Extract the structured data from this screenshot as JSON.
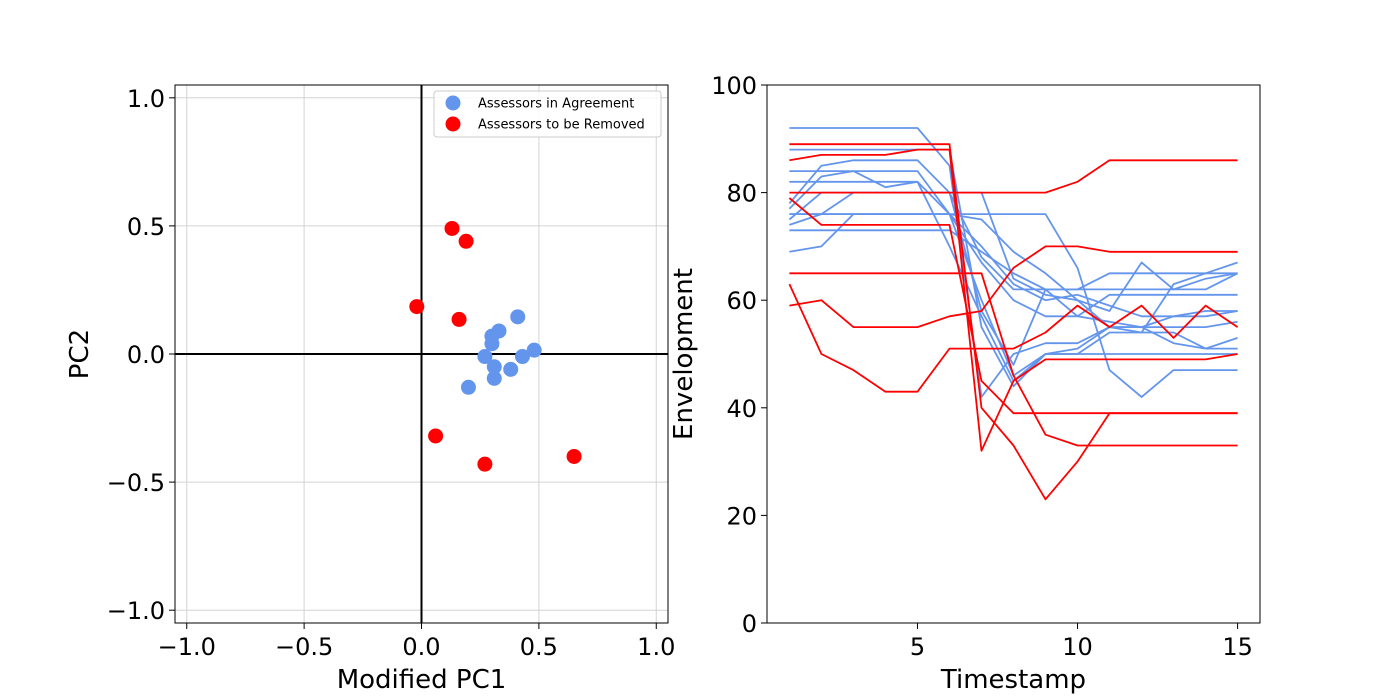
{
  "chart_data": [
    {
      "type": "scatter",
      "xlabel": "Modified PC1",
      "ylabel": "PC2",
      "xlim": [
        -1.05,
        1.05
      ],
      "ylim": [
        -1.05,
        1.05
      ],
      "xticks": [
        -1.0,
        -0.5,
        0.0,
        0.5,
        1.0
      ],
      "yticks": [
        -1.0,
        -0.5,
        0.0,
        0.5,
        1.0
      ],
      "xtick_labels": [
        "−1.0",
        "−0.5",
        "0.0",
        "0.5",
        "1.0"
      ],
      "ytick_labels": [
        "−1.0",
        "−0.5",
        "0.0",
        "0.5",
        "1.0"
      ],
      "grid": true,
      "legend_position": "top-right",
      "series": [
        {
          "name": "Assessors in Agreement",
          "color": "#6495ed",
          "points": [
            [
              0.41,
              0.145
            ],
            [
              0.33,
              0.09
            ],
            [
              0.3,
              0.07
            ],
            [
              0.3,
              0.04
            ],
            [
              0.27,
              -0.01
            ],
            [
              0.48,
              0.015
            ],
            [
              0.43,
              -0.01
            ],
            [
              0.31,
              -0.05
            ],
            [
              0.38,
              -0.06
            ],
            [
              0.31,
              -0.095
            ],
            [
              0.2,
              -0.13
            ]
          ]
        },
        {
          "name": "Assessors to be Removed",
          "color": "#ff0000",
          "points": [
            [
              0.13,
              0.49
            ],
            [
              0.19,
              0.44
            ],
            [
              -0.02,
              0.185
            ],
            [
              0.16,
              0.135
            ],
            [
              0.06,
              -0.32
            ],
            [
              0.27,
              -0.43
            ],
            [
              0.65,
              -0.4
            ]
          ]
        }
      ]
    },
    {
      "type": "line",
      "xlabel": "Timestamp",
      "ylabel": "Envelopment",
      "xlim": [
        0.3,
        15.7
      ],
      "ylim": [
        0,
        100
      ],
      "xticks": [
        5,
        10,
        15
      ],
      "yticks": [
        0,
        20,
        40,
        60,
        80,
        100
      ],
      "xtick_labels": [
        "5",
        "10",
        "15"
      ],
      "ytick_labels": [
        "0",
        "20",
        "40",
        "60",
        "80",
        "100"
      ],
      "grid": false,
      "x": [
        1,
        2,
        3,
        4,
        5,
        6,
        7,
        8,
        9,
        10,
        11,
        12,
        13,
        14,
        15
      ],
      "series": [
        {
          "color": "#6495ed",
          "values": [
            92,
            92,
            92,
            92,
            92,
            85,
            42,
            50,
            52,
            52,
            55,
            55,
            57,
            57,
            58
          ]
        },
        {
          "color": "#6495ed",
          "values": [
            88,
            88,
            88,
            88,
            88,
            88,
            55,
            44,
            50,
            50,
            50,
            50,
            50,
            50,
            50
          ]
        },
        {
          "color": "#6495ed",
          "values": [
            78,
            85,
            86,
            86,
            86,
            80,
            58,
            48,
            62,
            62,
            62,
            62,
            62,
            62,
            65
          ]
        },
        {
          "color": "#6495ed",
          "values": [
            77,
            83,
            84,
            81,
            82,
            76,
            60,
            46,
            50,
            51,
            55,
            54,
            63,
            65,
            67
          ]
        },
        {
          "color": "#6495ed",
          "values": [
            82,
            82,
            82,
            82,
            82,
            70,
            57,
            45,
            50,
            50,
            54,
            54,
            54,
            51,
            53
          ]
        },
        {
          "color": "#6495ed",
          "values": [
            84,
            84,
            84,
            84,
            84,
            76,
            67,
            60,
            57,
            57,
            61,
            61,
            61,
            61,
            61
          ]
        },
        {
          "color": "#6495ed",
          "values": [
            76,
            76,
            76,
            76,
            76,
            76,
            76,
            76,
            76,
            66,
            47,
            42,
            47,
            47,
            47
          ]
        },
        {
          "color": "#6495ed",
          "values": [
            74,
            76,
            80,
            80,
            80,
            80,
            68,
            62,
            62,
            62,
            65,
            65,
            65,
            65,
            65
          ]
        },
        {
          "color": "#6495ed",
          "values": [
            69,
            70,
            76,
            76,
            76,
            76,
            75,
            69,
            65,
            60,
            58,
            67,
            62,
            64,
            65
          ]
        },
        {
          "color": "#6495ed",
          "values": [
            76,
            76,
            76,
            76,
            76,
            76,
            70,
            63,
            60,
            61,
            59,
            57,
            57,
            58,
            58
          ]
        },
        {
          "color": "#6495ed",
          "values": [
            73,
            73,
            73,
            73,
            73,
            73,
            69,
            65,
            62,
            57,
            56,
            55,
            52,
            51,
            51
          ]
        },
        {
          "color": "#6495ed",
          "values": [
            75,
            80,
            80,
            80,
            80,
            80,
            80,
            64,
            61,
            60,
            55,
            55,
            55,
            55,
            56
          ]
        },
        {
          "color": "#ff0000",
          "values": [
            86,
            87,
            87,
            87,
            88,
            88,
            32,
            45,
            49,
            49,
            49,
            49,
            49,
            49,
            50
          ]
        },
        {
          "color": "#ff0000",
          "values": [
            80,
            80,
            80,
            80,
            80,
            80,
            80,
            80,
            80,
            82,
            86,
            86,
            86,
            86,
            86
          ]
        },
        {
          "color": "#ff0000",
          "values": [
            89,
            89,
            89,
            89,
            89,
            89,
            40,
            33,
            23,
            30,
            39,
            39,
            39,
            39,
            39
          ]
        },
        {
          "color": "#ff0000",
          "values": [
            79,
            74,
            74,
            74,
            74,
            74,
            45,
            39,
            39,
            39,
            39,
            39,
            39,
            39,
            39
          ]
        },
        {
          "color": "#ff0000",
          "values": [
            65,
            65,
            65,
            65,
            65,
            65,
            65,
            46,
            35,
            33,
            33,
            33,
            33,
            33,
            33
          ]
        },
        {
          "color": "#ff0000",
          "values": [
            63,
            50,
            47,
            43,
            43,
            51,
            51,
            51,
            54,
            59,
            55,
            59,
            53,
            59,
            55
          ]
        },
        {
          "color": "#ff0000",
          "values": [
            59,
            60,
            55,
            55,
            55,
            57,
            58,
            66,
            70,
            70,
            69,
            69,
            69,
            69,
            69
          ]
        }
      ]
    }
  ]
}
